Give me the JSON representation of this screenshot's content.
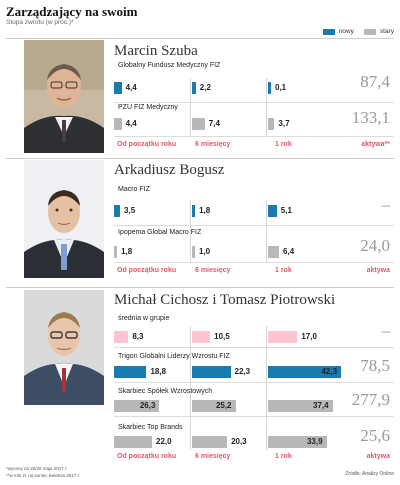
{
  "header": {
    "title": "Zarządzający na swoim",
    "subtitle": "Stopa zwrotu (w proc.)*"
  },
  "legend": {
    "new_label": "nowy",
    "old_label": "stary",
    "colors": {
      "new_dark": "#1a7bb0",
      "new_light": "#ffc4cf",
      "old": "#b8b8b8"
    }
  },
  "categories": {
    "ytd": "Od początku roku",
    "m6": "6 miesięcy",
    "y1": "1 rok",
    "assets": "aktywa",
    "assets_starred": "aktywa**"
  },
  "chart_data": {
    "type": "bar",
    "categories": [
      "Od początku roku",
      "6 miesięcy",
      "1 rok"
    ],
    "groups": [
      {
        "manager": "Marcin Szuba",
        "funds": [
          {
            "name": "Globalny Fundusz Medyczny FIZ",
            "status": "nowy",
            "values": [
              4.4,
              2.2,
              0.1
            ],
            "labels": [
              "4,4",
              "2,2",
              "0,1"
            ],
            "assets": "87,4"
          },
          {
            "name": "PZU FIZ Medyczny",
            "status": "stary",
            "values": [
              4.4,
              7.4,
              3.7
            ],
            "labels": [
              "4,4",
              "7,4",
              "3,7"
            ],
            "assets": "133,1"
          }
        ]
      },
      {
        "manager": "Arkadiusz Bogusz",
        "funds": [
          {
            "name": "Macro FIZ",
            "status": "nowy",
            "values": [
              3.5,
              1.8,
              5.1
            ],
            "labels": [
              "3,5",
              "1,8",
              "5,1"
            ],
            "assets": "–"
          },
          {
            "name": "Ipopema Global Macro FIZ",
            "status": "stary",
            "values": [
              1.8,
              1.0,
              6.4
            ],
            "labels": [
              "1,8",
              "1,0",
              "6,4"
            ],
            "assets": "24,0"
          }
        ]
      },
      {
        "manager": "Michał Cichosz i Tomasz Piotrowski",
        "funds": [
          {
            "name": "średnia w grupie",
            "status": "nowy",
            "values": [
              8.3,
              10.5,
              17.0
            ],
            "labels": [
              "8,3",
              "10,5",
              "17,0"
            ],
            "assets": "–"
          },
          {
            "name": "Trigon Globalni Liderzy Wzrostu FIZ",
            "status": "nowy",
            "values": [
              18.8,
              22.3,
              42.3
            ],
            "labels": [
              "18,8",
              "22,3",
              "42,3"
            ],
            "assets": "78,5"
          },
          {
            "name": "Skarbiec Spółek Wzrostowych",
            "status": "stary",
            "values": [
              26.3,
              25.2,
              37.4
            ],
            "labels": [
              "26,3",
              "25,2",
              "37,4"
            ],
            "assets": "277,9"
          },
          {
            "name": "Skarbiec Top Brands",
            "status": "stary",
            "values": [
              22.0,
              20.3,
              33.9
            ],
            "labels": [
              "22,0",
              "20,3",
              "33,9"
            ],
            "assets": "25,6"
          }
        ]
      }
    ]
  },
  "footnotes": {
    "note1": "*wyceny na 25/26 maja 2017 r.",
    "note2": "**w mln zł, na koniec kwietnia 2017 r.",
    "source": "Źródło: Analizy Online"
  }
}
